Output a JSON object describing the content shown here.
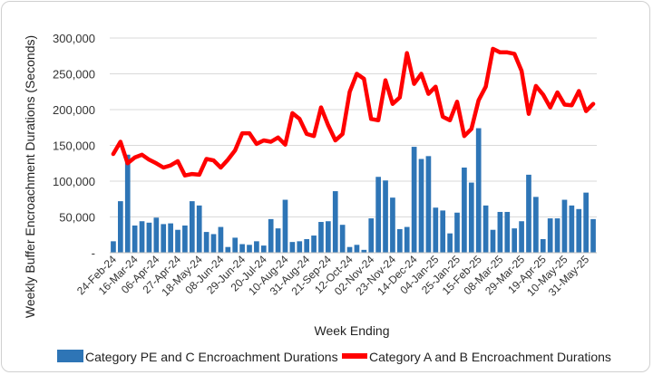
{
  "chart_data": {
    "type": "bar+line",
    "title": "",
    "xlabel": "Week Ending",
    "ylabel": "Weekly Buffer Encroachment Durations (Seconds)",
    "ylim": [
      0,
      300000
    ],
    "yticks": [
      0,
      50000,
      100000,
      150000,
      200000,
      250000,
      300000
    ],
    "ytick_labels": [
      "-",
      "50,000",
      "100,000",
      "150,000",
      "200,000",
      "250,000",
      "300,000"
    ],
    "grid": true,
    "legend_position": "bottom",
    "x_tick_labels": [
      "24-Feb-24",
      "16-Mar-24",
      "06-Apr-24",
      "27-Apr-24",
      "18-May-24",
      "08-Jun-24",
      "29-Jun-24",
      "20-Jul-24",
      "10-Aug-24",
      "31-Aug-24",
      "21-Sep-24",
      "12-Oct-24",
      "02-Nov-24",
      "23-Nov-24",
      "14-Dec-24",
      "04-Jan-25",
      "25-Jan-25",
      "15-Feb-25",
      "08-Mar-25",
      "29-Mar-25",
      "19-Apr-25",
      "10-May-25",
      "31-May-25"
    ],
    "tick_every": 3,
    "series": [
      {
        "name": "Category PE and C Encroachment Durations",
        "kind": "bar",
        "color": "#2E75B6",
        "values": [
          16000,
          72000,
          137000,
          38000,
          44000,
          42000,
          49000,
          40000,
          41000,
          32000,
          38000,
          72000,
          66000,
          29000,
          26000,
          36000,
          8000,
          21000,
          12000,
          11000,
          16000,
          10000,
          47000,
          34000,
          74000,
          15000,
          16000,
          19000,
          24000,
          43000,
          44000,
          86000,
          39000,
          8000,
          11000,
          4000,
          48000,
          106000,
          101000,
          77000,
          33000,
          36000,
          148000,
          131000,
          135000,
          63000,
          59000,
          27000,
          56000,
          119000,
          98000,
          174000,
          66000,
          32000,
          57000,
          57000,
          34000,
          44000,
          109000,
          78000,
          19000,
          48000,
          48000,
          74000,
          66000,
          61000,
          84000,
          47000
        ]
      },
      {
        "name": "Category A and B Encroachment Durations",
        "kind": "line",
        "color": "#FF0000",
        "values": [
          138000,
          155000,
          125000,
          133000,
          137000,
          130000,
          125000,
          119000,
          122000,
          128000,
          108000,
          110000,
          109000,
          131000,
          129000,
          119000,
          130000,
          143000,
          167000,
          167000,
          152000,
          157000,
          155000,
          161000,
          151000,
          195000,
          187000,
          166000,
          163000,
          203000,
          178000,
          157000,
          166000,
          225000,
          250000,
          243000,
          187000,
          185000,
          241000,
          208000,
          217000,
          279000,
          236000,
          250000,
          222000,
          232000,
          190000,
          185000,
          211000,
          163000,
          173000,
          213000,
          232000,
          285000,
          280000,
          280000,
          278000,
          254000,
          194000,
          233000,
          221000,
          203000,
          224000,
          207000,
          206000,
          226000,
          198000,
          208000
        ]
      }
    ]
  }
}
